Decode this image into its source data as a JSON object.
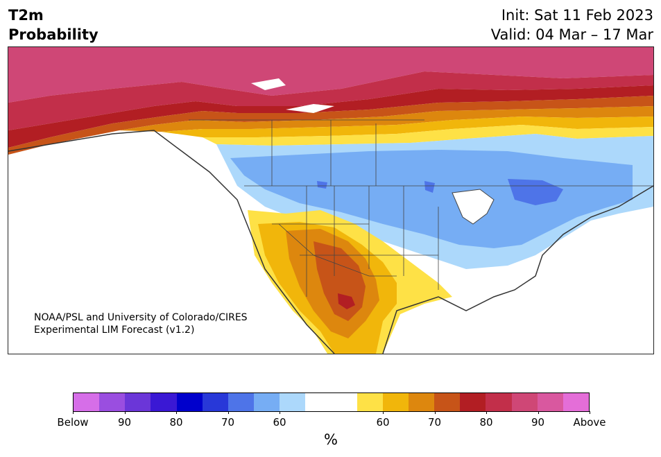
{
  "title": {
    "line1": "T2m",
    "line2": "Probability"
  },
  "init": "Init: Sat 11 Feb 2023",
  "valid": "Valid: 04 Mar – 17 Mar",
  "credit": {
    "line1": "NOAA/PSL and University of Colorado/CIRES",
    "line2": "Experimental LIM Forecast (v1.2)"
  },
  "colorbar": {
    "unit": "%",
    "below_colors": [
      "#d66ee8",
      "#9a4ee0",
      "#6b36d8",
      "#3a18d4",
      "#0000cc",
      "#2838d8",
      "#4e74e8",
      "#76adf4",
      "#acd8fb"
    ],
    "neutral_color": "#ffffff",
    "above_colors": [
      "#fee146",
      "#f1b60b",
      "#dd870e",
      "#c75418",
      "#b21e23",
      "#c22f4a",
      "#cf4776",
      "#d9589f",
      "#e46ed8"
    ],
    "tick_labels": [
      "Below",
      "90",
      "80",
      "70",
      "60",
      "60",
      "70",
      "80",
      "90",
      "Above"
    ]
  }
}
